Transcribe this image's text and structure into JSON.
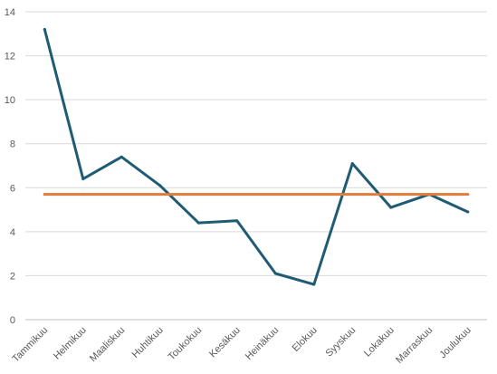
{
  "chart_data": {
    "type": "line",
    "title": "",
    "xlabel": "",
    "ylabel": "",
    "ylim": [
      0,
      14
    ],
    "yticks": [
      "0",
      "2",
      "4",
      "6",
      "8",
      "10",
      "12",
      "14"
    ],
    "grid": true,
    "legend": "none",
    "categories": [
      "Tammikuu",
      "Helmikuu",
      "Maaliskuu",
      "Huhtikuu",
      "Toukokuu",
      "Kesäkuu",
      "Heinäkuu",
      "Elokuu",
      "Syyskuu",
      "Lokakuu",
      "Marraskuu",
      "Joulukuu"
    ],
    "series": [
      {
        "color": "#1f5c74",
        "values": [
          13.2,
          6.4,
          7.4,
          6.1,
          4.4,
          4.5,
          2.1,
          1.6,
          7.1,
          5.1,
          5.7,
          4.9
        ]
      },
      {
        "color": "#e07b39",
        "values": [
          5.7,
          5.7,
          5.7,
          5.7,
          5.7,
          5.7,
          5.7,
          5.7,
          5.7,
          5.7,
          5.7,
          5.7
        ]
      }
    ]
  }
}
